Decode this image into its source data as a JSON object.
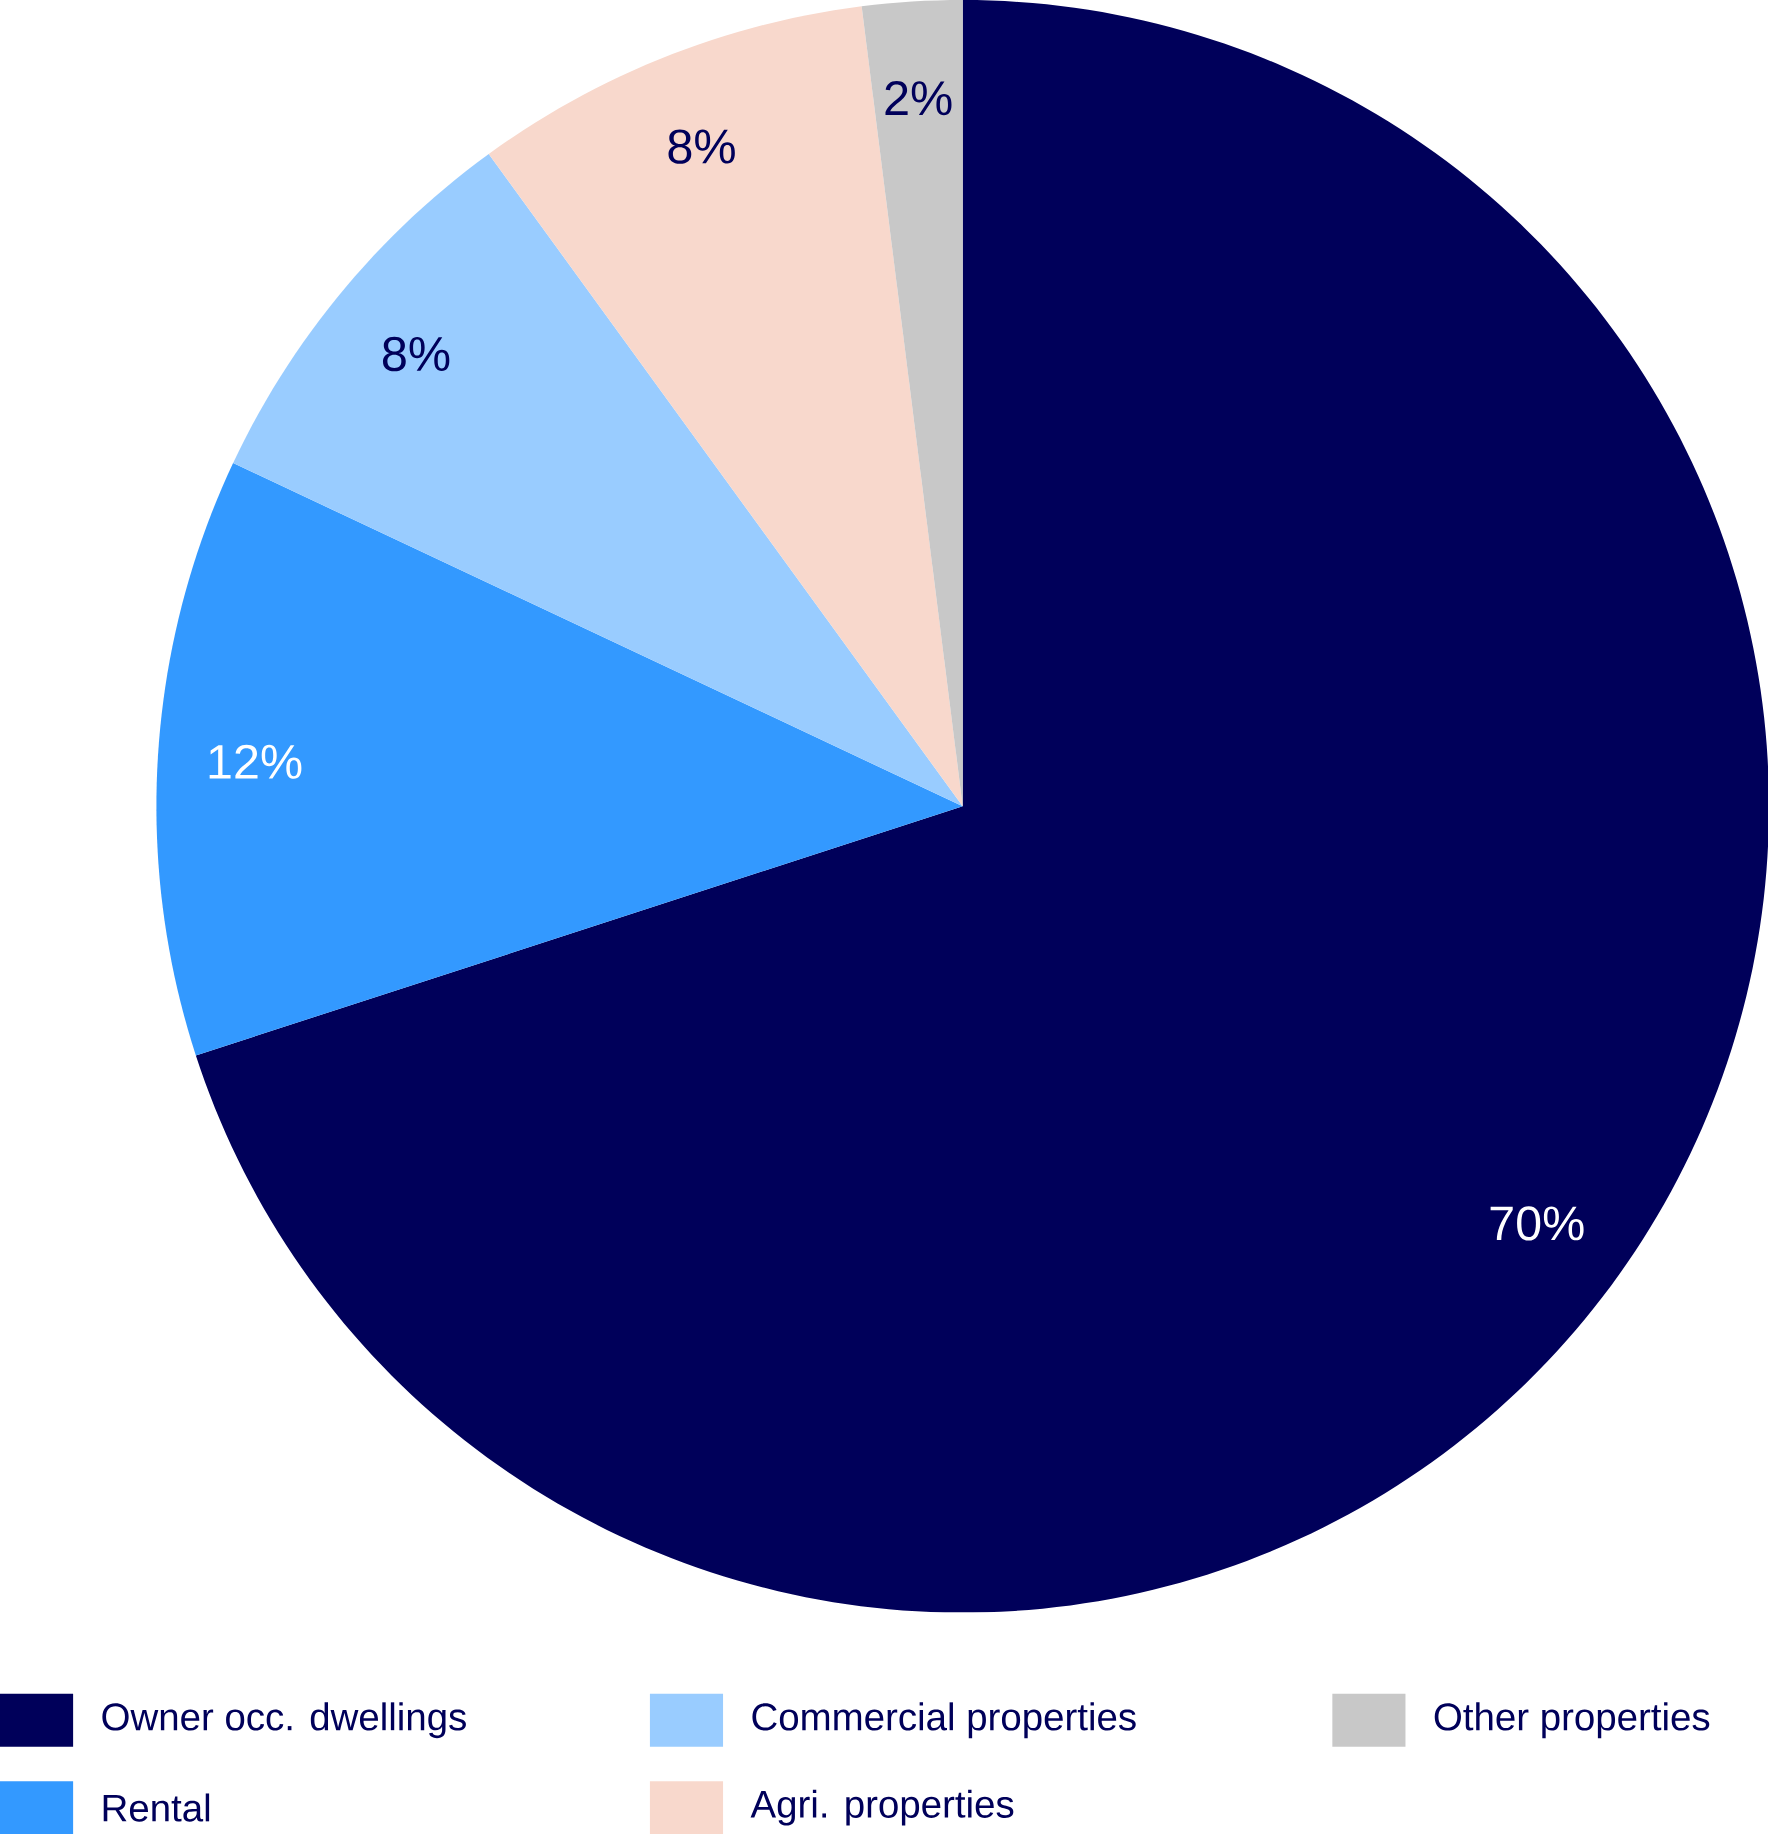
{
  "chart_data": {
    "type": "pie",
    "categories": [
      "Owner occ. dwellings",
      "Rental",
      "Commercial properties",
      "Agri. properties",
      "Other properties"
    ],
    "values": [
      70,
      12,
      8,
      8,
      2
    ],
    "colors": [
      "#00005a",
      "#3399ff",
      "#99ccff",
      "#f8d8cc",
      "#c8c8c8"
    ],
    "value_labels": [
      "70%",
      "12%",
      "8%",
      "8%",
      "2%"
    ],
    "legend": "bottom"
  }
}
